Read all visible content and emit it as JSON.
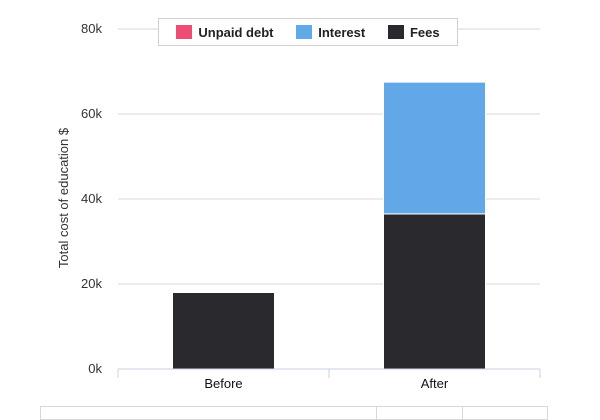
{
  "chart_data": {
    "type": "bar",
    "stacked": true,
    "categories": [
      "Before",
      "After"
    ],
    "series": [
      {
        "name": "Unpaid debt",
        "color": "#ee4d73",
        "values": [
          0,
          0
        ]
      },
      {
        "name": "Interest",
        "color": "#62a8e8",
        "values": [
          0,
          31000
        ]
      },
      {
        "name": "Fees",
        "color": "#2a2a2e",
        "values": [
          18000,
          36500
        ]
      }
    ],
    "ylabel": "Total cost of education $",
    "ylim": [
      0,
      80000
    ],
    "yticks": [
      "0k",
      "20k",
      "40k",
      "60k",
      "80k"
    ],
    "ytick_values": [
      0,
      20000,
      40000,
      60000,
      80000
    ],
    "grid": true,
    "legend_position": "top"
  }
}
